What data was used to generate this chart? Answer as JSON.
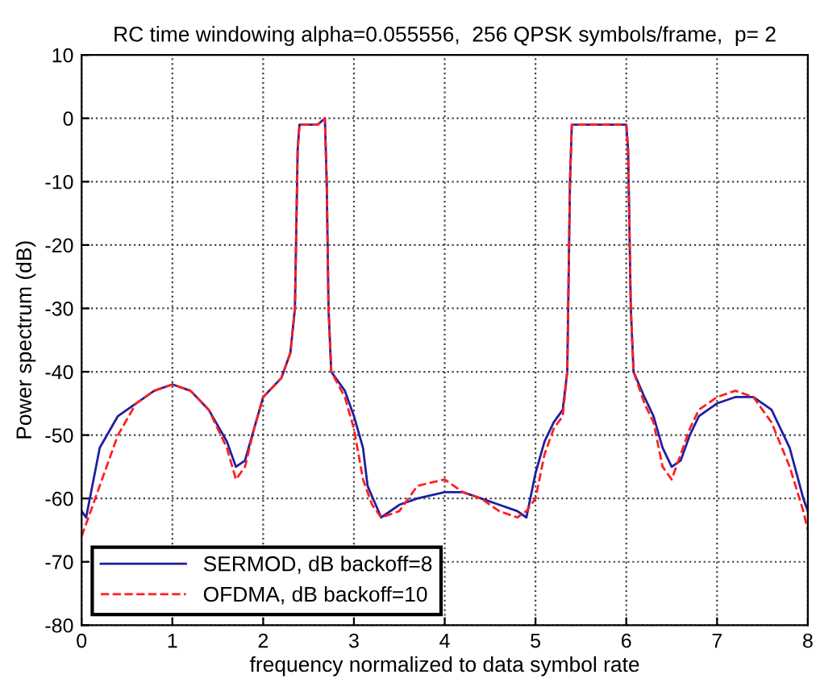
{
  "chart_data": {
    "type": "line",
    "title": "RC time windowing alpha=0.055556,  256 QPSK symbols/frame,  p= 2",
    "xlabel": "frequency normalized to data symbol rate",
    "ylabel": "Power spectrum (dB)",
    "xlim": [
      0,
      8
    ],
    "ylim": [
      -80,
      10
    ],
    "xticks": [
      0,
      1,
      2,
      3,
      4,
      5,
      6,
      7,
      8
    ],
    "yticks": [
      -80,
      -70,
      -60,
      -50,
      -40,
      -30,
      -20,
      -10,
      0,
      10
    ],
    "grid": true,
    "legend": "bottom left",
    "series": [
      {
        "name": "SERMOD, dB backoff=8",
        "color": "#1f1f9f",
        "line_style": "solid",
        "x": [
          0,
          0.05,
          0.2,
          0.4,
          0.6,
          0.8,
          1.0,
          1.2,
          1.4,
          1.6,
          1.7,
          1.8,
          1.9,
          2.0,
          2.2,
          2.3,
          2.35,
          2.38,
          2.4,
          2.5,
          2.6,
          2.68,
          2.7,
          2.72,
          2.75,
          2.9,
          3.0,
          3.1,
          3.15,
          3.3,
          3.5,
          3.7,
          4.0,
          4.2,
          4.4,
          4.6,
          4.8,
          4.9,
          5.0,
          5.1,
          5.2,
          5.3,
          5.35,
          5.38,
          5.4,
          5.6,
          5.8,
          6.0,
          6.02,
          6.05,
          6.08,
          6.2,
          6.3,
          6.4,
          6.5,
          6.6,
          6.7,
          6.8,
          7.0,
          7.2,
          7.4,
          7.6,
          7.8,
          7.95,
          8
        ],
        "values": [
          -62,
          -63,
          -52,
          -47,
          -45,
          -43,
          -42,
          -43,
          -46,
          -51,
          -55,
          -54,
          -49,
          -44,
          -41,
          -37,
          -30,
          -5,
          -1,
          -1,
          -1,
          0,
          -10,
          -30,
          -40,
          -43,
          -47,
          -52,
          -58,
          -63,
          -61,
          -60,
          -59,
          -59,
          -60,
          -61,
          -62,
          -63,
          -56,
          -51,
          -48,
          -46,
          -40,
          -10,
          -1,
          -1,
          -1,
          -1,
          -5,
          -30,
          -40,
          -44,
          -47,
          -52,
          -55,
          -54,
          -50,
          -47,
          -45,
          -44,
          -44,
          -46,
          -52,
          -60,
          -62
        ]
      },
      {
        "name": "OFDMA, dB backoff=10",
        "color": "#ff2020",
        "line_style": "dashed",
        "x": [
          0,
          0.2,
          0.4,
          0.6,
          0.8,
          1.0,
          1.2,
          1.4,
          1.6,
          1.7,
          1.8,
          1.9,
          2.0,
          2.2,
          2.3,
          2.35,
          2.38,
          2.4,
          2.5,
          2.6,
          2.68,
          2.7,
          2.72,
          2.75,
          2.9,
          3.0,
          3.1,
          3.2,
          3.3,
          3.5,
          3.7,
          4.0,
          4.2,
          4.4,
          4.6,
          4.8,
          4.9,
          5.0,
          5.1,
          5.2,
          5.3,
          5.35,
          5.38,
          5.4,
          5.6,
          5.8,
          6.0,
          6.02,
          6.05,
          6.08,
          6.2,
          6.3,
          6.4,
          6.5,
          6.6,
          6.7,
          6.8,
          7.0,
          7.2,
          7.4,
          7.6,
          7.8,
          7.95,
          8
        ],
        "values": [
          -66,
          -58,
          -50,
          -45,
          -43,
          -42,
          -43,
          -46,
          -52,
          -57,
          -55,
          -49,
          -44,
          -41,
          -37,
          -30,
          -5,
          -1,
          -1,
          -1,
          0,
          -10,
          -30,
          -40,
          -44,
          -49,
          -57,
          -61,
          -63,
          -62,
          -58,
          -57,
          -59,
          -60,
          -62,
          -63,
          -62,
          -60,
          -53,
          -49,
          -47,
          -40,
          -10,
          -1,
          -1,
          -1,
          -1,
          -5,
          -30,
          -40,
          -45,
          -48,
          -55,
          -57,
          -53,
          -49,
          -46,
          -44,
          -43,
          -44,
          -48,
          -55,
          -62,
          -65
        ]
      }
    ]
  }
}
